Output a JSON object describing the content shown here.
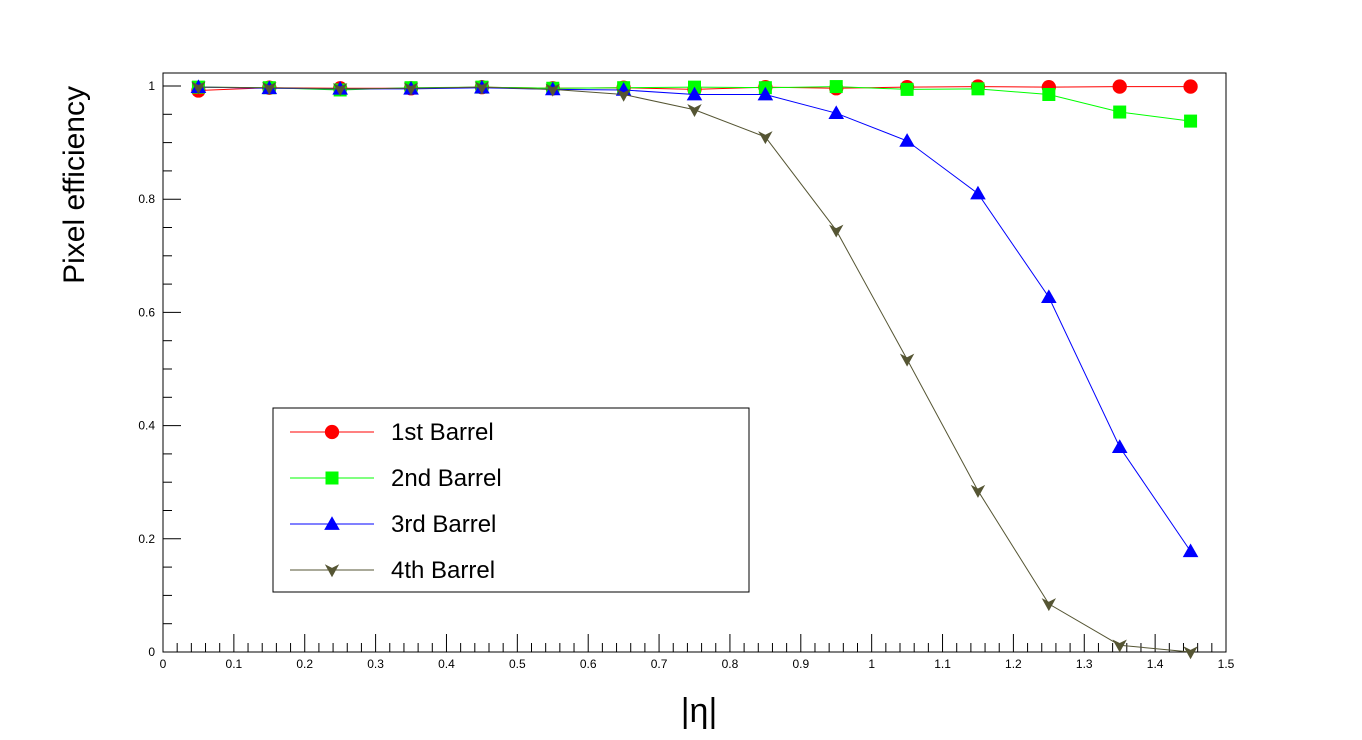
{
  "chart_data": {
    "type": "line",
    "xlabel": "|η|",
    "ylabel": "Pixel efficiency",
    "xlim": [
      0,
      1.5
    ],
    "ylim": [
      0,
      1.02
    ],
    "x_ticks": [
      "0",
      "0.1",
      "0.2",
      "0.3",
      "0.4",
      "0.5",
      "0.6",
      "0.7",
      "0.8",
      "0.9",
      "1",
      "1.1",
      "1.2",
      "1.3",
      "1.4",
      "1.5"
    ],
    "y_ticks": [
      "0",
      "0.2",
      "0.4",
      "0.6",
      "0.8",
      "1"
    ],
    "grid": false,
    "legend_position": "bottom-left",
    "x": [
      0.05,
      0.15,
      0.25,
      0.35,
      0.45,
      0.55,
      0.65,
      0.75,
      0.85,
      0.95,
      1.05,
      1.15,
      1.25,
      1.35,
      1.45
    ],
    "series": [
      {
        "name": "1st Barrel",
        "color": "#ff0000",
        "marker": "circle",
        "values": [
          0.992,
          0.997,
          0.996,
          0.996,
          0.998,
          0.996,
          0.997,
          0.994,
          0.998,
          0.996,
          0.998,
          0.999,
          0.998,
          0.999,
          0.999
        ]
      },
      {
        "name": "2nd Barrel",
        "color": "#00ff00",
        "marker": "square",
        "values": [
          0.998,
          0.997,
          0.993,
          0.997,
          0.998,
          0.996,
          0.997,
          0.998,
          0.997,
          0.999,
          0.994,
          0.995,
          0.985,
          0.954,
          0.938
        ]
      },
      {
        "name": "3rd Barrel",
        "color": "#0000ff",
        "marker": "triangle-up",
        "values": [
          0.998,
          0.996,
          0.995,
          0.995,
          0.997,
          0.994,
          0.993,
          0.985,
          0.985,
          0.952,
          0.903,
          0.81,
          0.627,
          0.362,
          0.178
        ]
      },
      {
        "name": "4th Barrel",
        "color": "#555533",
        "marker": "triangle-down",
        "values": [
          0.998,
          0.997,
          0.995,
          0.996,
          0.998,
          0.994,
          0.985,
          0.958,
          0.91,
          0.745,
          0.517,
          0.285,
          0.085,
          0.012,
          0.0
        ]
      }
    ]
  }
}
